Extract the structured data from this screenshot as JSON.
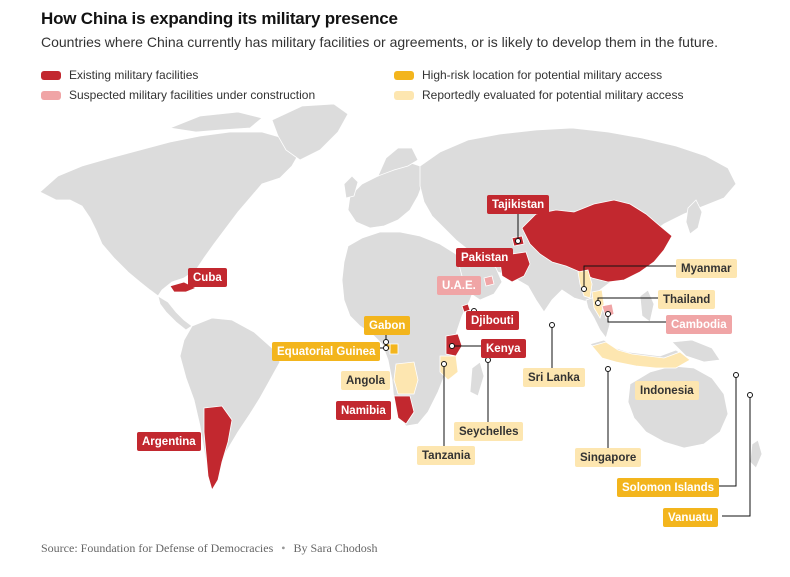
{
  "title": "How China is expanding its military presence",
  "subtitle": "Countries where China currently has military facilities or agreements, or is likely to develop them in the future.",
  "legend": [
    {
      "label": "Existing military facilities",
      "color": "#c2282f"
    },
    {
      "label": "Suspected military facilities under construction",
      "color": "#f0a5a6"
    },
    {
      "label": "High-risk location for potential military access",
      "color": "#f3b51d"
    },
    {
      "label": "Reportedly evaluated for potential military access",
      "color": "#fde6b0"
    }
  ],
  "labels": {
    "tajikistan": "Tajikistan",
    "pakistan": "Pakistan",
    "cuba": "Cuba",
    "uae": "U.A.E.",
    "djibouti": "Djibouti",
    "gabon": "Gabon",
    "equatorial_guinea": "Equatorial Guinea",
    "kenya": "Kenya",
    "angola": "Angola",
    "namibia": "Namibia",
    "argentina": "Argentina",
    "seychelles": "Seychelles",
    "tanzania": "Tanzania",
    "myanmar": "Myanmar",
    "thailand": "Thailand",
    "cambodia": "Cambodia",
    "sri_lanka": "Sri Lanka",
    "indonesia": "Indonesia",
    "singapore": "Singapore",
    "solomon_islands": "Solomon Islands",
    "vanuatu": "Vanuatu"
  },
  "source": {
    "text": "Source: Foundation for Defense of Democracies",
    "byline": "By Sara Chodosh"
  }
}
